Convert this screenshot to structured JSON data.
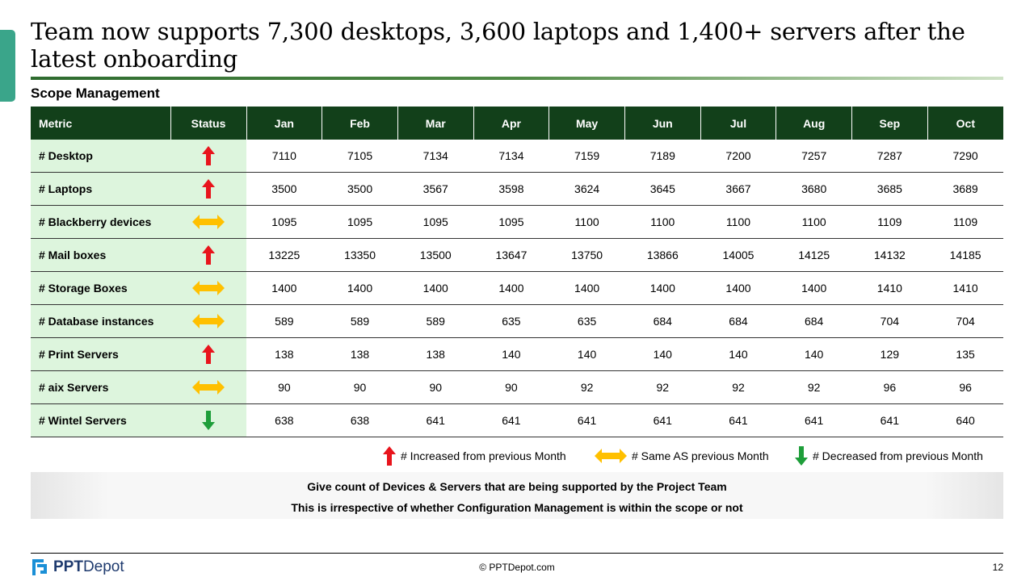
{
  "title": "Team now supports 7,300 desktops, 3,600 laptops and 1,400+ servers after the latest onboarding",
  "subtitle": "Scope Management",
  "table": {
    "headers": [
      "Metric",
      "Status",
      "Jan",
      "Feb",
      "Mar",
      "Apr",
      "May",
      "Jun",
      "Jul",
      "Aug",
      "Sep",
      "Oct"
    ],
    "rows": [
      {
        "metric": "# Desktop",
        "status": "up",
        "values": [
          "7110",
          "7105",
          "7134",
          "7134",
          "7159",
          "7189",
          "7200",
          "7257",
          "7287",
          "7290"
        ]
      },
      {
        "metric": "# Laptops",
        "status": "up",
        "values": [
          "3500",
          "3500",
          "3567",
          "3598",
          "3624",
          "3645",
          "3667",
          "3680",
          "3685",
          "3689"
        ]
      },
      {
        "metric": "# Blackberry devices",
        "status": "same",
        "values": [
          "1095",
          "1095",
          "1095",
          "1095",
          "1100",
          "1100",
          "1100",
          "1100",
          "1109",
          "1109"
        ]
      },
      {
        "metric": "# Mail boxes",
        "status": "up",
        "values": [
          "13225",
          "13350",
          "13500",
          "13647",
          "13750",
          "13866",
          "14005",
          "14125",
          "14132",
          "14185"
        ]
      },
      {
        "metric": "# Storage Boxes",
        "status": "same",
        "values": [
          "1400",
          "1400",
          "1400",
          "1400",
          "1400",
          "1400",
          "1400",
          "1400",
          "1410",
          "1410"
        ]
      },
      {
        "metric": "# Database instances",
        "status": "same",
        "values": [
          "589",
          "589",
          "589",
          "635",
          "635",
          "684",
          "684",
          "684",
          "704",
          "704"
        ]
      },
      {
        "metric": "# Print Servers",
        "status": "up",
        "values": [
          "138",
          "138",
          "138",
          "140",
          "140",
          "140",
          "140",
          "140",
          "129",
          "135"
        ]
      },
      {
        "metric": "# aix Servers",
        "status": "same",
        "values": [
          "90",
          "90",
          "90",
          "90",
          "92",
          "92",
          "92",
          "92",
          "96",
          "96"
        ]
      },
      {
        "metric": "# Wintel Servers",
        "status": "down",
        "values": [
          "638",
          "638",
          "641",
          "641",
          "641",
          "641",
          "641",
          "641",
          "641",
          "640"
        ]
      }
    ]
  },
  "legend": {
    "up": "# Increased from previous Month",
    "same": "# Same AS previous Month",
    "down": "# Decreased from  previous Month"
  },
  "note": {
    "line1": "Give count of  Devices & Servers that are being supported by the Project Team",
    "line2": "This is irrespective of whether Configuration Management is within the scope or not"
  },
  "footer": {
    "logo_bold": "PPT",
    "logo_rest": "Depot",
    "copyright": "© PPTDepot.com",
    "page_number": "12"
  },
  "colors": {
    "header_bg": "#12401a",
    "metric_bg": "#ddf5dd",
    "up": "#e8141c",
    "same": "#ffc000",
    "down": "#1e9e3a",
    "accent_tab": "#3aa58a"
  }
}
